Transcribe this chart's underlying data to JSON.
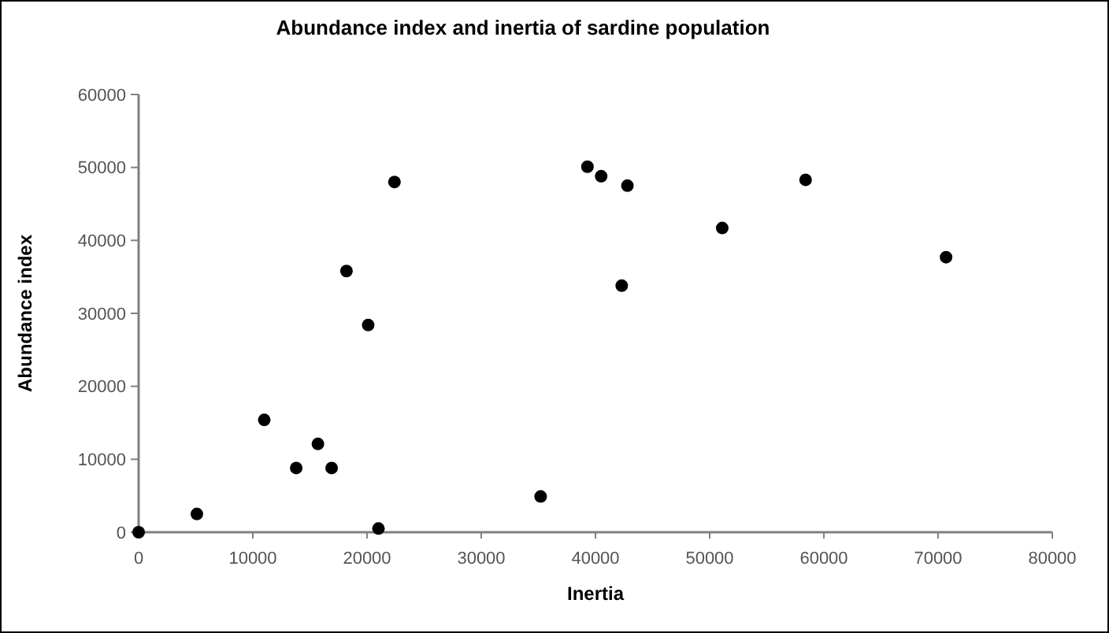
{
  "chart_data": {
    "type": "scatter",
    "title": "Abundance index and inertia of sardine population",
    "xlabel": "Inertia",
    "ylabel": "Abundance index",
    "x": [
      0,
      5100,
      11000,
      13800,
      15700,
      16900,
      18200,
      20100,
      21000,
      22400,
      35200,
      39300,
      40500,
      42800,
      42300,
      51100,
      58400,
      70700
    ],
    "values": [
      0,
      2500,
      15400,
      8800,
      12100,
      8800,
      35800,
      28400,
      500,
      48000,
      4900,
      50100,
      48800,
      47500,
      33800,
      41700,
      48300,
      37700
    ],
    "color": "#000000",
    "marker": "circle",
    "xlim": [
      0,
      80000
    ],
    "xticks": [
      0,
      10000,
      20000,
      30000,
      40000,
      50000,
      60000,
      70000,
      80000
    ],
    "ylim": [
      0,
      60000
    ],
    "yticks": [
      0,
      10000,
      20000,
      30000,
      40000,
      50000,
      60000
    ],
    "grid": false
  }
}
